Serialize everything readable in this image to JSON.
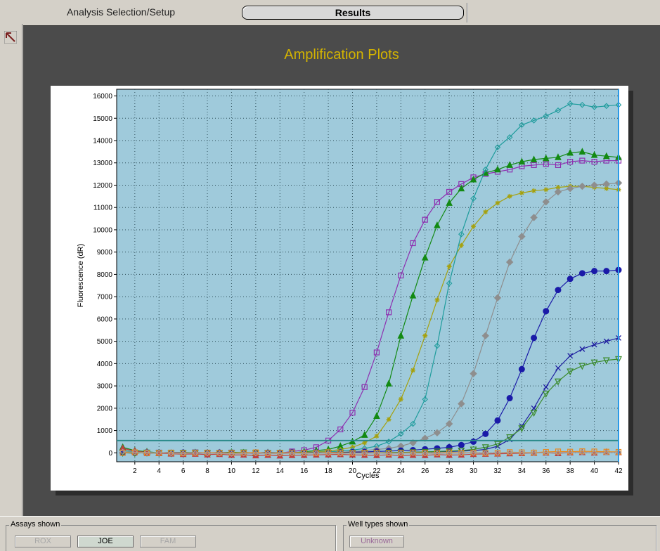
{
  "tabs": {
    "setup_label": "Analysis Selection/Setup",
    "results_label": "Results"
  },
  "plot_title": "Amplification Plots",
  "colors": {
    "title": "#d4b400",
    "plot_bg": "#9fcadb",
    "threshold": "#2a8a8a",
    "cursor": "#2a9ae8"
  },
  "chart_data": {
    "type": "line",
    "xlabel": "Cycles",
    "ylabel": "Fluorescence (dR)",
    "xlim": [
      0.5,
      42
    ],
    "ylim": [
      -400,
      16300
    ],
    "x_ticks": [
      2,
      4,
      6,
      8,
      10,
      12,
      14,
      16,
      18,
      20,
      22,
      24,
      26,
      28,
      30,
      32,
      34,
      36,
      38,
      40,
      42
    ],
    "y_ticks": [
      0,
      1000,
      2000,
      3000,
      4000,
      5000,
      6000,
      7000,
      8000,
      9000,
      10000,
      11000,
      12000,
      13000,
      14000,
      15000,
      16000
    ],
    "grid": true,
    "threshold": 550,
    "cursor_x": 42,
    "x": [
      1,
      2,
      3,
      4,
      5,
      6,
      7,
      8,
      9,
      10,
      11,
      12,
      13,
      14,
      15,
      16,
      17,
      18,
      19,
      20,
      21,
      22,
      23,
      24,
      25,
      26,
      27,
      28,
      29,
      30,
      31,
      32,
      33,
      34,
      35,
      36,
      37,
      38,
      39,
      40,
      41,
      42
    ],
    "series": [
      {
        "color": "#8e2fb0",
        "marker": "square",
        "values": [
          0,
          20,
          -20,
          10,
          0,
          -10,
          20,
          0,
          -30,
          10,
          0,
          -40,
          0,
          -20,
          60,
          120,
          250,
          550,
          1050,
          1800,
          2950,
          4500,
          6300,
          7950,
          9400,
          10450,
          11250,
          11700,
          12050,
          12350,
          12500,
          12600,
          12700,
          12850,
          12900,
          12950,
          12900,
          13050,
          13100,
          13050,
          13100,
          13100
        ]
      },
      {
        "color": "#138a13",
        "marker": "triangle",
        "values": [
          250,
          100,
          50,
          0,
          -20,
          0,
          10,
          -20,
          0,
          30,
          0,
          -20,
          10,
          0,
          0,
          50,
          100,
          150,
          300,
          500,
          800,
          1650,
          3100,
          5250,
          7050,
          8750,
          10200,
          11200,
          11850,
          12250,
          12550,
          12700,
          12900,
          13050,
          13150,
          13200,
          13250,
          13450,
          13500,
          13350,
          13300,
          13250
        ]
      },
      {
        "color": "#a5a10e",
        "marker": "star",
        "values": [
          100,
          50,
          0,
          -20,
          0,
          20,
          0,
          -10,
          0,
          10,
          -20,
          0,
          -30,
          0,
          10,
          20,
          40,
          80,
          150,
          250,
          450,
          750,
          1500,
          2400,
          3700,
          5250,
          6850,
          8350,
          9300,
          10150,
          10800,
          11200,
          11500,
          11650,
          11750,
          11800,
          11900,
          11950,
          11950,
          11900,
          11850,
          11800
        ]
      },
      {
        "color": "#1e9c9c",
        "marker": "diamond",
        "values": [
          100,
          50,
          0,
          0,
          20,
          0,
          -20,
          0,
          10,
          0,
          -10,
          0,
          20,
          0,
          0,
          10,
          20,
          40,
          80,
          120,
          200,
          300,
          500,
          850,
          1300,
          2400,
          4800,
          7600,
          9800,
          11400,
          12700,
          13700,
          14150,
          14700,
          14900,
          15100,
          15350,
          15650,
          15600,
          15500,
          15550,
          15600
        ]
      },
      {
        "color": "#8e8e8e",
        "marker": "diamond_filled",
        "values": [
          0,
          20,
          0,
          -20,
          0,
          10,
          0,
          -10,
          20,
          0,
          -10,
          0,
          10,
          0,
          -20,
          0,
          10,
          20,
          30,
          50,
          100,
          150,
          200,
          300,
          450,
          650,
          900,
          1300,
          2200,
          3550,
          5250,
          6950,
          8550,
          9700,
          10550,
          11250,
          11700,
          11850,
          11950,
          12000,
          12050,
          12100
        ]
      },
      {
        "color": "#1a1aa8",
        "marker": "circle_filled",
        "values": [
          0,
          -10,
          20,
          0,
          -20,
          10,
          0,
          0,
          10,
          -10,
          0,
          10,
          0,
          -10,
          20,
          0,
          0,
          10,
          20,
          30,
          40,
          60,
          80,
          100,
          120,
          160,
          200,
          250,
          350,
          500,
          850,
          1450,
          2450,
          3750,
          5150,
          6350,
          7300,
          7800,
          8050,
          8150,
          8150,
          8200
        ]
      },
      {
        "color": "#2020a0",
        "marker": "x",
        "values": [
          0,
          10,
          -10,
          0,
          20,
          0,
          -10,
          10,
          0,
          -20,
          0,
          10,
          0,
          -10,
          0,
          10,
          0,
          -10,
          0,
          20,
          0,
          10,
          0,
          20,
          30,
          40,
          50,
          60,
          80,
          100,
          150,
          300,
          600,
          1200,
          2000,
          2950,
          3800,
          4350,
          4650,
          4850,
          5000,
          5150
        ]
      },
      {
        "color": "#3a8a2a",
        "marker": "triangle_down",
        "values": [
          0,
          -10,
          10,
          0,
          -20,
          0,
          10,
          0,
          -10,
          0,
          20,
          0,
          -10,
          0,
          10,
          0,
          -10,
          0,
          10,
          0,
          -20,
          0,
          10,
          20,
          30,
          40,
          60,
          80,
          100,
          150,
          250,
          400,
          700,
          1100,
          1800,
          2650,
          3200,
          3650,
          3900,
          4050,
          4150,
          4200
        ]
      },
      {
        "color": "#c04040",
        "marker": "triangle",
        "values": [
          200,
          80,
          20,
          -20,
          -40,
          -60,
          -50,
          -80,
          -60,
          -100,
          -90,
          -120,
          -100,
          -130,
          -110,
          -100,
          -90,
          -80,
          -70,
          -90,
          -100,
          -110,
          -90,
          -120,
          -100,
          -110,
          -80,
          -100,
          -90,
          -60,
          -50,
          -40,
          -30,
          -20,
          -10,
          0,
          -20,
          10,
          20,
          0,
          30,
          20
        ]
      },
      {
        "color": "#e88a20",
        "marker": "square",
        "values": [
          0,
          20,
          -10,
          0,
          10,
          -20,
          0,
          10,
          0,
          -10,
          0,
          20,
          -20,
          0,
          10,
          0,
          -10,
          20,
          0,
          -10,
          0,
          10,
          -20,
          0,
          10,
          0,
          -10,
          20,
          0,
          10,
          -10,
          0,
          30,
          20,
          10,
          40,
          60,
          50,
          70,
          60,
          50,
          40
        ]
      },
      {
        "color": "#a0a0a0",
        "marker": "diamond",
        "values": [
          50,
          30,
          20,
          0,
          -20,
          -30,
          -10,
          -20,
          -30,
          -40,
          -30,
          -20,
          -30,
          -40,
          -20,
          -30,
          -10,
          -20,
          -30,
          -10,
          -20,
          -10,
          -30,
          -20,
          -10,
          -20,
          -30,
          -10,
          -20,
          0,
          -10,
          0,
          10,
          0,
          -10,
          10,
          0,
          20,
          10,
          0,
          10,
          20
        ]
      }
    ]
  },
  "bottom": {
    "assays_label": "Assays shown",
    "assays": [
      "ROX",
      "JOE",
      "FAM"
    ],
    "well_types_label": "Well types shown",
    "well_types": [
      "Unknown"
    ]
  }
}
